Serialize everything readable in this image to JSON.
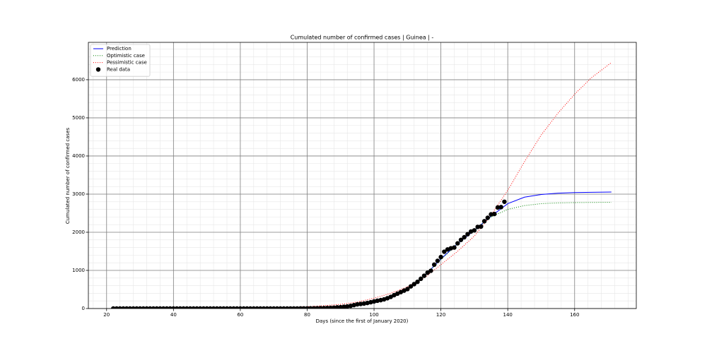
{
  "chart_data": {
    "type": "line",
    "title": "Cumulated number of confirmed cases | Guinea | -",
    "xlabel": "Days (since the first of January 2020)",
    "ylabel": "Cumulated number of confirmed cases",
    "xlim": [
      14.55,
      178.45
    ],
    "ylim": [
      0,
      6980
    ],
    "xticks": [
      20,
      40,
      60,
      80,
      100,
      120,
      140,
      160
    ],
    "yticks": [
      0,
      1000,
      2000,
      3000,
      4000,
      5000,
      6000
    ],
    "xminorticks": [
      16,
      20,
      24,
      28,
      32,
      36,
      40,
      44,
      48,
      52,
      56,
      60,
      64,
      68,
      72,
      76,
      80,
      84,
      88,
      92,
      96,
      100,
      104,
      108,
      112,
      116,
      120,
      124,
      128,
      132,
      136,
      140,
      144,
      148,
      152,
      156,
      160,
      164,
      168,
      172,
      176
    ],
    "yminorticks": [
      0,
      200,
      400,
      600,
      800,
      1000,
      1200,
      1400,
      1600,
      1800,
      2000,
      2200,
      2400,
      2600,
      2800,
      3000,
      3200,
      3400,
      3600,
      3800,
      4000,
      4200,
      4400,
      4600,
      4800,
      5000,
      5200,
      5400,
      5600,
      5800,
      6000,
      6200,
      6400,
      6600,
      6800
    ],
    "grid": true,
    "legend": "upper left",
    "series": [
      {
        "name": "Prediction",
        "color": "#0000ff",
        "style": "solid",
        "x": [
          22,
          30,
          40,
          50,
          60,
          70,
          75,
          80,
          85,
          90,
          95,
          100,
          105,
          110,
          115,
          120,
          125,
          130,
          135,
          140,
          145,
          150,
          155,
          160,
          165,
          171
        ],
        "values": [
          0,
          0,
          1,
          2,
          4,
          8,
          12,
          18,
          28,
          45,
          80,
          150,
          270,
          520,
          850,
          1300,
          1700,
          2050,
          2420,
          2750,
          2920,
          2990,
          3025,
          3040,
          3048,
          3055
        ]
      },
      {
        "name": "Optimistic case",
        "color": "#008000",
        "style": "dotted",
        "x": [
          22,
          30,
          40,
          50,
          60,
          70,
          75,
          80,
          85,
          90,
          95,
          100,
          105,
          110,
          115,
          120,
          125,
          130,
          135,
          140,
          145,
          150,
          155,
          160,
          165,
          171
        ],
        "values": [
          0,
          0,
          1,
          2,
          4,
          8,
          12,
          18,
          28,
          45,
          80,
          150,
          280,
          520,
          850,
          1280,
          1700,
          2050,
          2400,
          2600,
          2700,
          2750,
          2770,
          2778,
          2782,
          2785
        ]
      },
      {
        "name": "Pessimistic case",
        "color": "#ff0000",
        "style": "dotted",
        "x": [
          22,
          30,
          40,
          50,
          60,
          70,
          75,
          80,
          85,
          90,
          95,
          100,
          105,
          110,
          115,
          120,
          125,
          130,
          135,
          140,
          145,
          150,
          155,
          160,
          165,
          171
        ],
        "values": [
          0,
          1,
          2,
          4,
          8,
          20,
          30,
          50,
          75,
          110,
          170,
          270,
          400,
          570,
          800,
          1150,
          1500,
          1900,
          2450,
          3100,
          3850,
          4550,
          5120,
          5620,
          6050,
          6450
        ]
      },
      {
        "name": "Real data",
        "color": "#000000",
        "type": "scatter",
        "x": [
          22,
          23,
          24,
          25,
          26,
          27,
          28,
          29,
          30,
          31,
          32,
          33,
          34,
          35,
          36,
          37,
          38,
          39,
          40,
          41,
          42,
          43,
          44,
          45,
          46,
          47,
          48,
          49,
          50,
          51,
          52,
          53,
          54,
          55,
          56,
          57,
          58,
          59,
          60,
          61,
          62,
          63,
          64,
          65,
          66,
          67,
          68,
          69,
          70,
          71,
          72,
          73,
          74,
          75,
          76,
          77,
          78,
          79,
          80,
          81,
          82,
          83,
          84,
          85,
          86,
          87,
          88,
          89,
          90,
          91,
          92,
          93,
          94,
          95,
          96,
          97,
          98,
          99,
          100,
          101,
          102,
          103,
          104,
          105,
          106,
          107,
          108,
          109,
          110,
          111,
          112,
          113,
          114,
          115,
          116,
          117,
          118,
          119,
          120,
          121,
          122,
          123,
          124,
          125,
          126,
          127,
          128,
          129,
          130,
          131,
          132,
          133,
          134,
          135,
          136,
          137,
          138,
          139
        ],
        "values": [
          0,
          0,
          0,
          0,
          0,
          0,
          0,
          0,
          0,
          0,
          0,
          0,
          0,
          0,
          0,
          0,
          0,
          0,
          0,
          0,
          0,
          0,
          0,
          0,
          0,
          0,
          0,
          0,
          0,
          0,
          0,
          0,
          0,
          0,
          0,
          0,
          0,
          0,
          0,
          0,
          0,
          0,
          0,
          0,
          0,
          0,
          0,
          0,
          0,
          0,
          0,
          0,
          0,
          1,
          2,
          2,
          3,
          4,
          4,
          5,
          6,
          8,
          10,
          12,
          15,
          18,
          22,
          30,
          35,
          45,
          55,
          70,
          90,
          110,
          120,
          130,
          145,
          165,
          185,
          205,
          220,
          240,
          270,
          305,
          350,
          390,
          430,
          470,
          510,
          580,
          640,
          700,
          780,
          860,
          940,
          990,
          1150,
          1250,
          1350,
          1490,
          1550,
          1580,
          1600,
          1710,
          1800,
          1870,
          1950,
          2020,
          2050,
          2140,
          2150,
          2290,
          2380,
          2470,
          2480,
          2650,
          2660,
          2800
        ]
      }
    ]
  }
}
